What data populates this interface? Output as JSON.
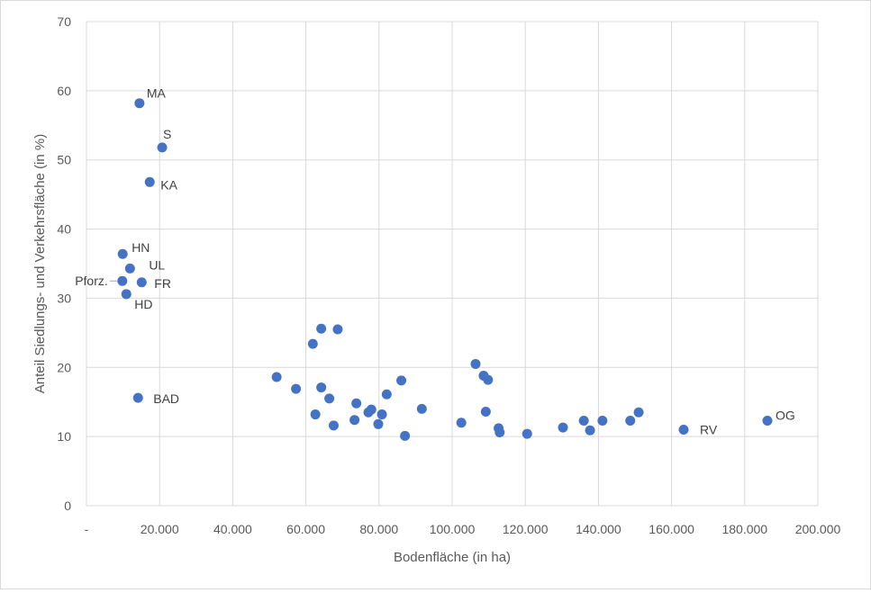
{
  "chart_data": {
    "type": "scatter",
    "title": "",
    "xlabel": "Bodenfläche (in ha)",
    "ylabel": "Anteil Siedlungs- und Verkehrsfläche (in %)",
    "xlim": [
      0,
      200000
    ],
    "ylim": [
      0,
      70
    ],
    "grid": true,
    "legend": "none",
    "marker_color": "#4472C4",
    "gridline_color": "#d9d9d9",
    "x_tick_labels": [
      "-",
      "20.000",
      "40.000",
      "60.000",
      "80.000",
      "100.000",
      "120.000",
      "140.000",
      "160.000",
      "180.000",
      "200.000"
    ],
    "y_tick_labels": [
      "0",
      "10",
      "20",
      "30",
      "40",
      "50",
      "60",
      "70"
    ],
    "points": [
      {
        "x": 14500,
        "y": 58.2,
        "label": "MA"
      },
      {
        "x": 20700,
        "y": 51.8,
        "label": "S"
      },
      {
        "x": 17300,
        "y": 46.8,
        "label": "KA"
      },
      {
        "x": 9900,
        "y": 36.4,
        "label": "HN"
      },
      {
        "x": 11900,
        "y": 34.3,
        "label": "UL"
      },
      {
        "x": 9800,
        "y": 32.5,
        "label": "Pforz."
      },
      {
        "x": 15100,
        "y": 32.3,
        "label": "FR"
      },
      {
        "x": 10900,
        "y": 30.6,
        "label": "HD"
      },
      {
        "x": 14100,
        "y": 15.6,
        "label": "BAD"
      },
      {
        "x": 163300,
        "y": 11.0,
        "label": "RV"
      },
      {
        "x": 186200,
        "y": 12.3,
        "label": "OG"
      },
      {
        "x": 52000,
        "y": 18.6
      },
      {
        "x": 57300,
        "y": 16.9
      },
      {
        "x": 61900,
        "y": 23.4
      },
      {
        "x": 62600,
        "y": 13.2
      },
      {
        "x": 64200,
        "y": 25.6
      },
      {
        "x": 64200,
        "y": 17.1
      },
      {
        "x": 66400,
        "y": 15.5
      },
      {
        "x": 67600,
        "y": 11.6
      },
      {
        "x": 68700,
        "y": 25.5
      },
      {
        "x": 73300,
        "y": 12.4
      },
      {
        "x": 73800,
        "y": 14.8
      },
      {
        "x": 77100,
        "y": 13.5
      },
      {
        "x": 77900,
        "y": 13.9
      },
      {
        "x": 79800,
        "y": 11.8
      },
      {
        "x": 80800,
        "y": 13.2
      },
      {
        "x": 82100,
        "y": 16.1
      },
      {
        "x": 86100,
        "y": 18.1
      },
      {
        "x": 87100,
        "y": 10.1
      },
      {
        "x": 91700,
        "y": 14.0
      },
      {
        "x": 102500,
        "y": 12.0
      },
      {
        "x": 106400,
        "y": 20.5
      },
      {
        "x": 108600,
        "y": 18.8
      },
      {
        "x": 109200,
        "y": 13.6
      },
      {
        "x": 109800,
        "y": 18.2
      },
      {
        "x": 112700,
        "y": 11.2
      },
      {
        "x": 113000,
        "y": 10.6
      },
      {
        "x": 120500,
        "y": 10.4
      },
      {
        "x": 130300,
        "y": 11.3
      },
      {
        "x": 136000,
        "y": 12.3
      },
      {
        "x": 137700,
        "y": 10.9
      },
      {
        "x": 141100,
        "y": 12.3
      },
      {
        "x": 148700,
        "y": 12.3
      },
      {
        "x": 151000,
        "y": 13.5
      }
    ]
  }
}
